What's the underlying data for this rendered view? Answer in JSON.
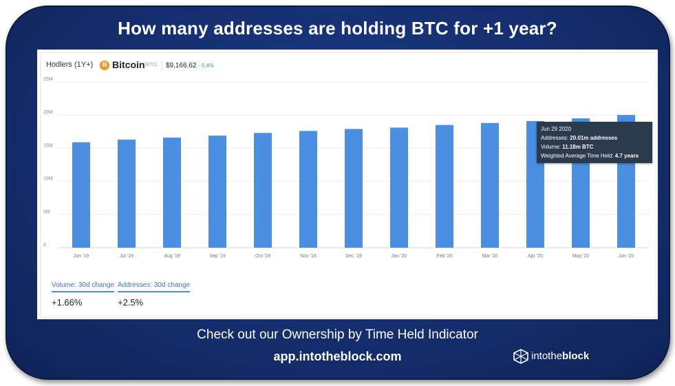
{
  "headline": "How many addresses are holding BTC for +1 year?",
  "header": {
    "metric_label": "Hodlers (1Y+)",
    "coin_icon": "bitcoin-icon",
    "coin_icon_glyph": "B",
    "coin_name": "Bitcoin",
    "coin_ticker": "(BTC)",
    "price": "$9,166.62",
    "change": "- 0.4%"
  },
  "colors": {
    "frame": "#152f73",
    "bar": "#4a8fe2",
    "tooltip_bg": "#2b3a4d",
    "change_positive": "#3aa55a"
  },
  "chart_data": {
    "type": "bar",
    "categories": [
      "Jun '19",
      "Jul '19",
      "Aug '19",
      "Sep '19",
      "Oct '19",
      "Nov '19",
      "Dec '19",
      "Jan '20",
      "Feb '20",
      "Mar '20",
      "Apr '20",
      "May '20",
      "Jun '20"
    ],
    "values": [
      15.9,
      16.3,
      16.6,
      16.9,
      17.3,
      17.6,
      17.9,
      18.1,
      18.5,
      18.8,
      19.1,
      19.5,
      20.01
    ],
    "unit": "M",
    "ylim": [
      0,
      25
    ],
    "y_ticks": [
      "0",
      "5M",
      "10M",
      "15M",
      "20M",
      "25M"
    ],
    "y_tick_values": [
      0,
      5,
      10,
      15,
      20,
      25
    ],
    "grid": true,
    "legend": "none"
  },
  "tooltip": {
    "date": "Jun 29 2020",
    "addresses_label": "Addresses:",
    "addresses_value": "20.01m addresses",
    "volume_label": "Volume:",
    "volume_value": "11.18m BTC",
    "time_held_label": "Weighted Average Time Held:",
    "time_held_value": "4.7 years"
  },
  "stats": [
    {
      "label": "Volume: 30d change",
      "value": "+1.66%"
    },
    {
      "label": "Addresses: 30d change",
      "value": "+2.5%"
    }
  ],
  "footer": {
    "cta": "Check out our Ownership by Time Held Indicator",
    "url": "app.intotheblock.com",
    "brand_icon": "intotheblock-logo-icon",
    "brand_prefix": "intothe",
    "brand_suffix": "block"
  }
}
